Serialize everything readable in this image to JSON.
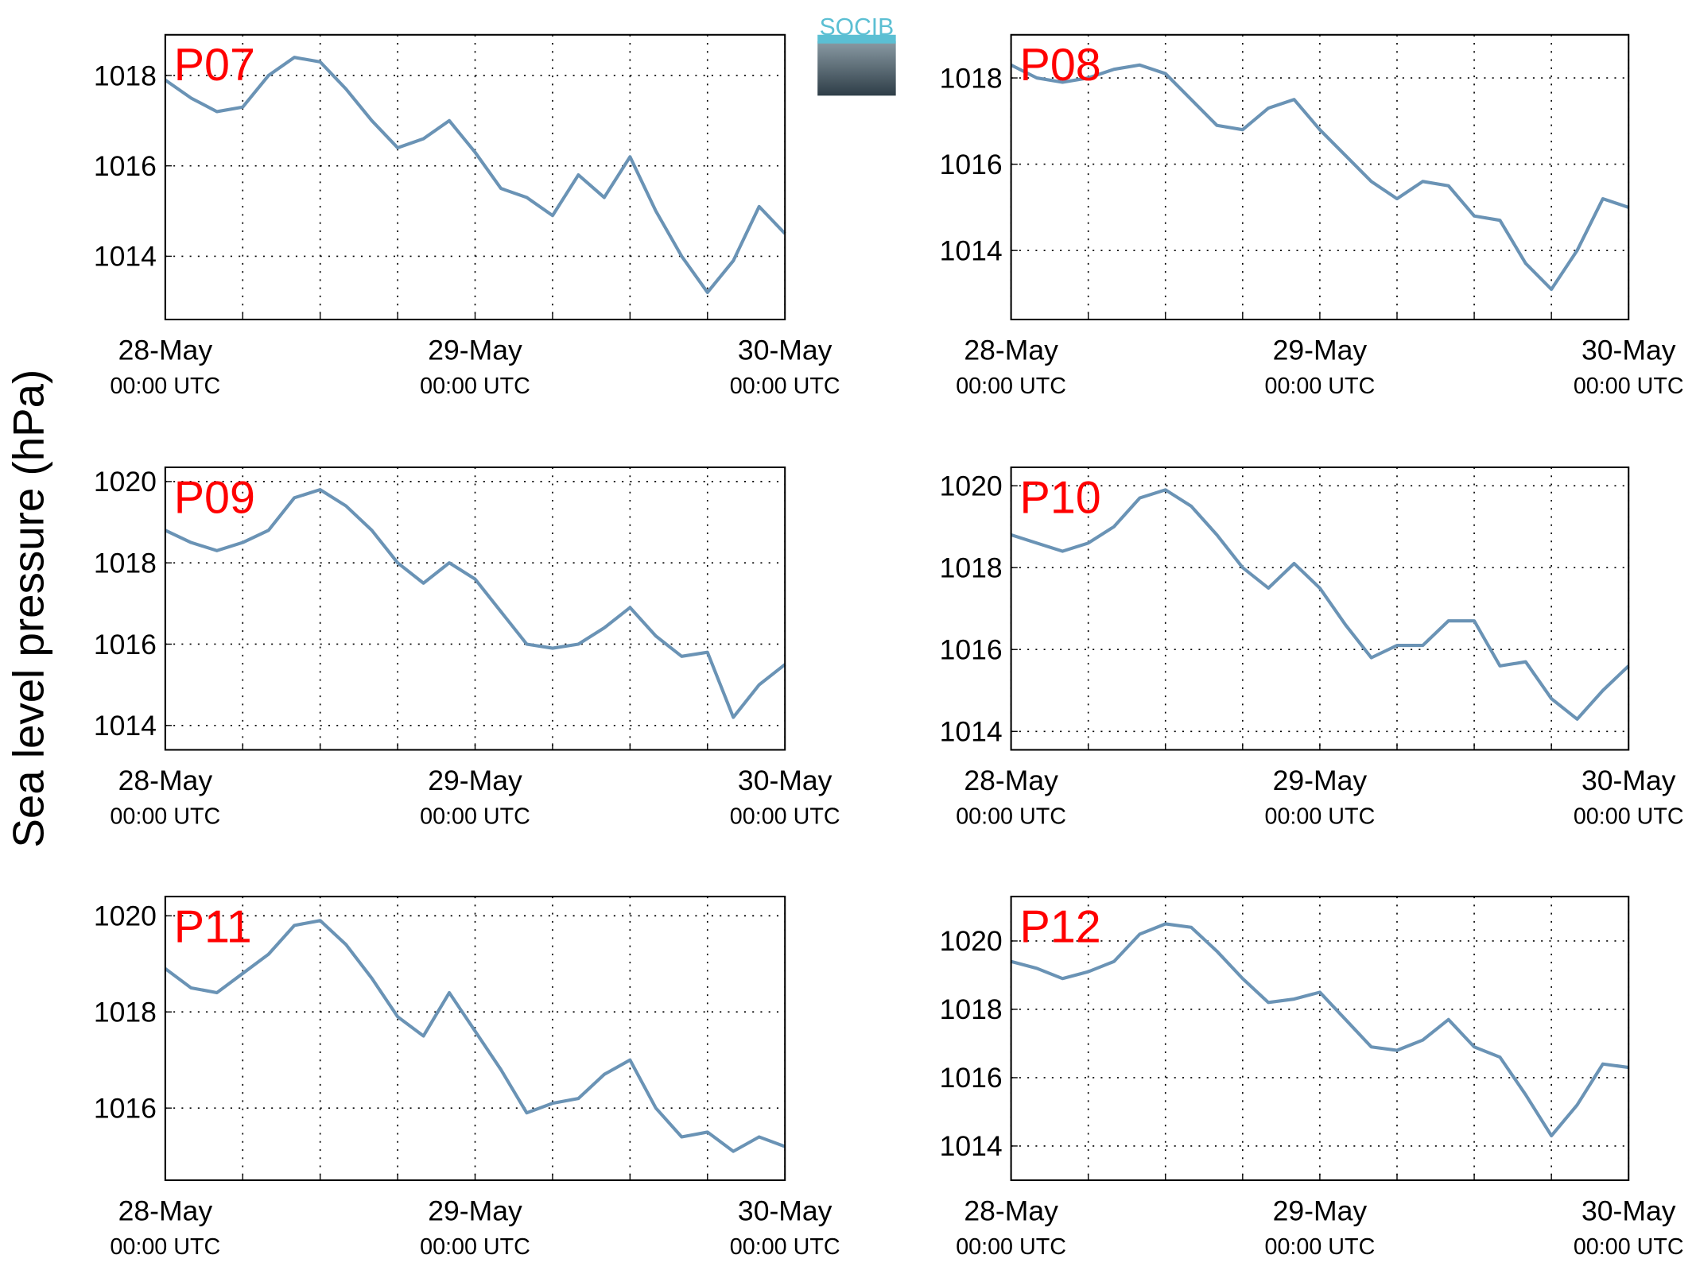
{
  "ylabel": "Sea level pressure (hPa)",
  "logo": "SOCIB",
  "chart_data": [
    {
      "type": "line",
      "title": "P07",
      "color": "#6a93b5",
      "grid": true,
      "x": [
        "28-May 00:00",
        "28-May 02:00",
        "28-May 04:00",
        "28-May 06:00",
        "28-May 08:00",
        "28-May 10:00",
        "28-May 12:00",
        "28-May 14:00",
        "28-May 16:00",
        "28-May 18:00",
        "28-May 20:00",
        "28-May 22:00",
        "29-May 00:00",
        "29-May 02:00",
        "29-May 04:00",
        "29-May 06:00",
        "29-May 08:00",
        "29-May 10:00",
        "29-May 12:00",
        "29-May 14:00",
        "29-May 16:00",
        "29-May 18:00",
        "29-May 20:00",
        "29-May 22:00",
        "30-May 00:00"
      ],
      "values": [
        1017.9,
        1017.5,
        1017.2,
        1017.3,
        1018.0,
        1018.4,
        1018.3,
        1017.7,
        1017.0,
        1016.4,
        1016.6,
        1017.0,
        1016.3,
        1015.5,
        1015.3,
        1014.9,
        1015.8,
        1015.3,
        1016.2,
        1015.0,
        1014.0,
        1013.2,
        1013.9,
        1015.1,
        1014.5
      ],
      "xlim": [
        "28-May 00:00",
        "30-May 00:00"
      ],
      "xticks": [
        {
          "value": "28-May 00:00",
          "label": [
            "28-May",
            "00:00 UTC"
          ]
        },
        {
          "value": "28-May 06:00",
          "label": null
        },
        {
          "value": "28-May 12:00",
          "label": null
        },
        {
          "value": "28-May 18:00",
          "label": null
        },
        {
          "value": "29-May 00:00",
          "label": [
            "29-May",
            "00:00 UTC"
          ]
        },
        {
          "value": "29-May 06:00",
          "label": null
        },
        {
          "value": "29-May 12:00",
          "label": null
        },
        {
          "value": "29-May 18:00",
          "label": null
        },
        {
          "value": "30-May 00:00",
          "label": [
            "30-May",
            "00:00 UTC"
          ]
        }
      ],
      "ylim": [
        1012.6,
        1018.9
      ],
      "yticks": [
        1014,
        1016,
        1018
      ]
    },
    {
      "type": "line",
      "title": "P08",
      "color": "#6a93b5",
      "grid": true,
      "x": [
        "28-May 00:00",
        "28-May 02:00",
        "28-May 04:00",
        "28-May 06:00",
        "28-May 08:00",
        "28-May 10:00",
        "28-May 12:00",
        "28-May 14:00",
        "28-May 16:00",
        "28-May 18:00",
        "28-May 20:00",
        "28-May 22:00",
        "29-May 00:00",
        "29-May 02:00",
        "29-May 04:00",
        "29-May 06:00",
        "29-May 08:00",
        "29-May 10:00",
        "29-May 12:00",
        "29-May 14:00",
        "29-May 16:00",
        "29-May 18:00",
        "29-May 20:00",
        "29-May 22:00",
        "30-May 00:00"
      ],
      "values": [
        1018.3,
        1018.0,
        1017.9,
        1018.0,
        1018.2,
        1018.3,
        1018.1,
        1017.5,
        1016.9,
        1016.8,
        1017.3,
        1017.5,
        1016.8,
        1016.2,
        1015.6,
        1015.2,
        1015.6,
        1015.5,
        1014.8,
        1014.7,
        1013.7,
        1013.1,
        1014.0,
        1015.2,
        1015.0
      ],
      "xlim": [
        "28-May 00:00",
        "30-May 00:00"
      ],
      "xticks": [
        {
          "value": "28-May 00:00",
          "label": [
            "28-May",
            "00:00 UTC"
          ]
        },
        {
          "value": "28-May 06:00",
          "label": null
        },
        {
          "value": "28-May 12:00",
          "label": null
        },
        {
          "value": "28-May 18:00",
          "label": null
        },
        {
          "value": "29-May 00:00",
          "label": [
            "29-May",
            "00:00 UTC"
          ]
        },
        {
          "value": "29-May 06:00",
          "label": null
        },
        {
          "value": "29-May 12:00",
          "label": null
        },
        {
          "value": "29-May 18:00",
          "label": null
        },
        {
          "value": "30-May 00:00",
          "label": [
            "30-May",
            "00:00 UTC"
          ]
        }
      ],
      "ylim": [
        1012.4,
        1019.0
      ],
      "yticks": [
        1014,
        1016,
        1018
      ]
    },
    {
      "type": "line",
      "title": "P09",
      "color": "#6a93b5",
      "grid": true,
      "x": [
        "28-May 00:00",
        "28-May 02:00",
        "28-May 04:00",
        "28-May 06:00",
        "28-May 08:00",
        "28-May 10:00",
        "28-May 12:00",
        "28-May 14:00",
        "28-May 16:00",
        "28-May 18:00",
        "28-May 20:00",
        "28-May 22:00",
        "29-May 00:00",
        "29-May 02:00",
        "29-May 04:00",
        "29-May 06:00",
        "29-May 08:00",
        "29-May 10:00",
        "29-May 12:00",
        "29-May 14:00",
        "29-May 16:00",
        "29-May 18:00",
        "29-May 20:00",
        "29-May 22:00",
        "30-May 00:00"
      ],
      "values": [
        1018.8,
        1018.5,
        1018.3,
        1018.5,
        1018.8,
        1019.6,
        1019.8,
        1019.4,
        1018.8,
        1018.0,
        1017.5,
        1018.0,
        1017.6,
        1016.8,
        1016.0,
        1015.9,
        1016.0,
        1016.4,
        1016.9,
        1016.2,
        1015.7,
        1015.8,
        1014.2,
        1015.0,
        1015.5
      ],
      "xlim": [
        "28-May 00:00",
        "30-May 00:00"
      ],
      "xticks": [
        {
          "value": "28-May 00:00",
          "label": [
            "28-May",
            "00:00 UTC"
          ]
        },
        {
          "value": "28-May 06:00",
          "label": null
        },
        {
          "value": "28-May 12:00",
          "label": null
        },
        {
          "value": "28-May 18:00",
          "label": null
        },
        {
          "value": "29-May 00:00",
          "label": [
            "29-May",
            "00:00 UTC"
          ]
        },
        {
          "value": "29-May 06:00",
          "label": null
        },
        {
          "value": "29-May 12:00",
          "label": null
        },
        {
          "value": "29-May 18:00",
          "label": null
        },
        {
          "value": "30-May 00:00",
          "label": [
            "30-May",
            "00:00 UTC"
          ]
        }
      ],
      "ylim": [
        1013.4,
        1020.35
      ],
      "yticks": [
        1014,
        1016,
        1018,
        1020
      ]
    },
    {
      "type": "line",
      "title": "P10",
      "color": "#6a93b5",
      "grid": true,
      "x": [
        "28-May 00:00",
        "28-May 02:00",
        "28-May 04:00",
        "28-May 06:00",
        "28-May 08:00",
        "28-May 10:00",
        "28-May 12:00",
        "28-May 14:00",
        "28-May 16:00",
        "28-May 18:00",
        "28-May 20:00",
        "28-May 22:00",
        "29-May 00:00",
        "29-May 02:00",
        "29-May 04:00",
        "29-May 06:00",
        "29-May 08:00",
        "29-May 10:00",
        "29-May 12:00",
        "29-May 14:00",
        "29-May 16:00",
        "29-May 18:00",
        "29-May 20:00",
        "29-May 22:00",
        "30-May 00:00"
      ],
      "values": [
        1018.8,
        1018.6,
        1018.4,
        1018.6,
        1019.0,
        1019.7,
        1019.9,
        1019.5,
        1018.8,
        1018.0,
        1017.5,
        1018.1,
        1017.5,
        1016.6,
        1015.8,
        1016.1,
        1016.1,
        1016.7,
        1016.7,
        1015.6,
        1015.7,
        1014.8,
        1014.3,
        1015.0,
        1015.6
      ],
      "xlim": [
        "28-May 00:00",
        "30-May 00:00"
      ],
      "xticks": [
        {
          "value": "28-May 00:00",
          "label": [
            "28-May",
            "00:00 UTC"
          ]
        },
        {
          "value": "28-May 06:00",
          "label": null
        },
        {
          "value": "28-May 12:00",
          "label": null
        },
        {
          "value": "28-May 18:00",
          "label": null
        },
        {
          "value": "29-May 00:00",
          "label": [
            "29-May",
            "00:00 UTC"
          ]
        },
        {
          "value": "29-May 06:00",
          "label": null
        },
        {
          "value": "29-May 12:00",
          "label": null
        },
        {
          "value": "29-May 18:00",
          "label": null
        },
        {
          "value": "30-May 00:00",
          "label": [
            "30-May",
            "00:00 UTC"
          ]
        }
      ],
      "ylim": [
        1013.55,
        1020.45
      ],
      "yticks": [
        1014,
        1016,
        1018,
        1020
      ]
    },
    {
      "type": "line",
      "title": "P11",
      "color": "#6a93b5",
      "grid": true,
      "x": [
        "28-May 00:00",
        "28-May 02:00",
        "28-May 04:00",
        "28-May 06:00",
        "28-May 08:00",
        "28-May 10:00",
        "28-May 12:00",
        "28-May 14:00",
        "28-May 16:00",
        "28-May 18:00",
        "28-May 20:00",
        "28-May 22:00",
        "29-May 00:00",
        "29-May 02:00",
        "29-May 04:00",
        "29-May 06:00",
        "29-May 08:00",
        "29-May 10:00",
        "29-May 12:00",
        "29-May 14:00",
        "29-May 16:00",
        "29-May 18:00",
        "29-May 20:00",
        "29-May 22:00",
        "30-May 00:00"
      ],
      "values": [
        1018.9,
        1018.5,
        1018.4,
        1018.8,
        1019.2,
        1019.8,
        1019.9,
        1019.4,
        1018.7,
        1017.9,
        1017.5,
        1018.4,
        1017.6,
        1016.8,
        1015.9,
        1016.1,
        1016.2,
        1016.7,
        1017.0,
        1016.0,
        1015.4,
        1015.5,
        1015.1,
        1015.4,
        1015.2
      ],
      "xlim": [
        "28-May 00:00",
        "30-May 00:00"
      ],
      "xticks": [
        {
          "value": "28-May 00:00",
          "label": [
            "28-May",
            "00:00 UTC"
          ]
        },
        {
          "value": "28-May 06:00",
          "label": null
        },
        {
          "value": "28-May 12:00",
          "label": null
        },
        {
          "value": "28-May 18:00",
          "label": null
        },
        {
          "value": "29-May 00:00",
          "label": [
            "29-May",
            "00:00 UTC"
          ]
        },
        {
          "value": "29-May 06:00",
          "label": null
        },
        {
          "value": "29-May 12:00",
          "label": null
        },
        {
          "value": "29-May 18:00",
          "label": null
        },
        {
          "value": "30-May 00:00",
          "label": [
            "30-May",
            "00:00 UTC"
          ]
        }
      ],
      "ylim": [
        1014.5,
        1020.4
      ],
      "yticks": [
        1016,
        1018,
        1020
      ]
    },
    {
      "type": "line",
      "title": "P12",
      "color": "#6a93b5",
      "grid": true,
      "x": [
        "28-May 00:00",
        "28-May 02:00",
        "28-May 04:00",
        "28-May 06:00",
        "28-May 08:00",
        "28-May 10:00",
        "28-May 12:00",
        "28-May 14:00",
        "28-May 16:00",
        "28-May 18:00",
        "28-May 20:00",
        "28-May 22:00",
        "29-May 00:00",
        "29-May 02:00",
        "29-May 04:00",
        "29-May 06:00",
        "29-May 08:00",
        "29-May 10:00",
        "29-May 12:00",
        "29-May 14:00",
        "29-May 16:00",
        "29-May 18:00",
        "29-May 20:00",
        "29-May 22:00",
        "30-May 00:00"
      ],
      "values": [
        1019.4,
        1019.2,
        1018.9,
        1019.1,
        1019.4,
        1020.2,
        1020.5,
        1020.4,
        1019.7,
        1018.9,
        1018.2,
        1018.3,
        1018.5,
        1017.7,
        1016.9,
        1016.8,
        1017.1,
        1017.7,
        1016.9,
        1016.6,
        1015.5,
        1014.3,
        1015.2,
        1016.4,
        1016.3
      ],
      "xlim": [
        "28-May 00:00",
        "30-May 00:00"
      ],
      "xticks": [
        {
          "value": "28-May 00:00",
          "label": [
            "28-May",
            "00:00 UTC"
          ]
        },
        {
          "value": "28-May 06:00",
          "label": null
        },
        {
          "value": "28-May 12:00",
          "label": null
        },
        {
          "value": "28-May 18:00",
          "label": null
        },
        {
          "value": "29-May 00:00",
          "label": [
            "29-May",
            "00:00 UTC"
          ]
        },
        {
          "value": "29-May 06:00",
          "label": null
        },
        {
          "value": "29-May 12:00",
          "label": null
        },
        {
          "value": "29-May 18:00",
          "label": null
        },
        {
          "value": "30-May 00:00",
          "label": [
            "30-May",
            "00:00 UTC"
          ]
        }
      ],
      "ylim": [
        1013.0,
        1021.3
      ],
      "yticks": [
        1014,
        1016,
        1018,
        1020
      ]
    }
  ]
}
